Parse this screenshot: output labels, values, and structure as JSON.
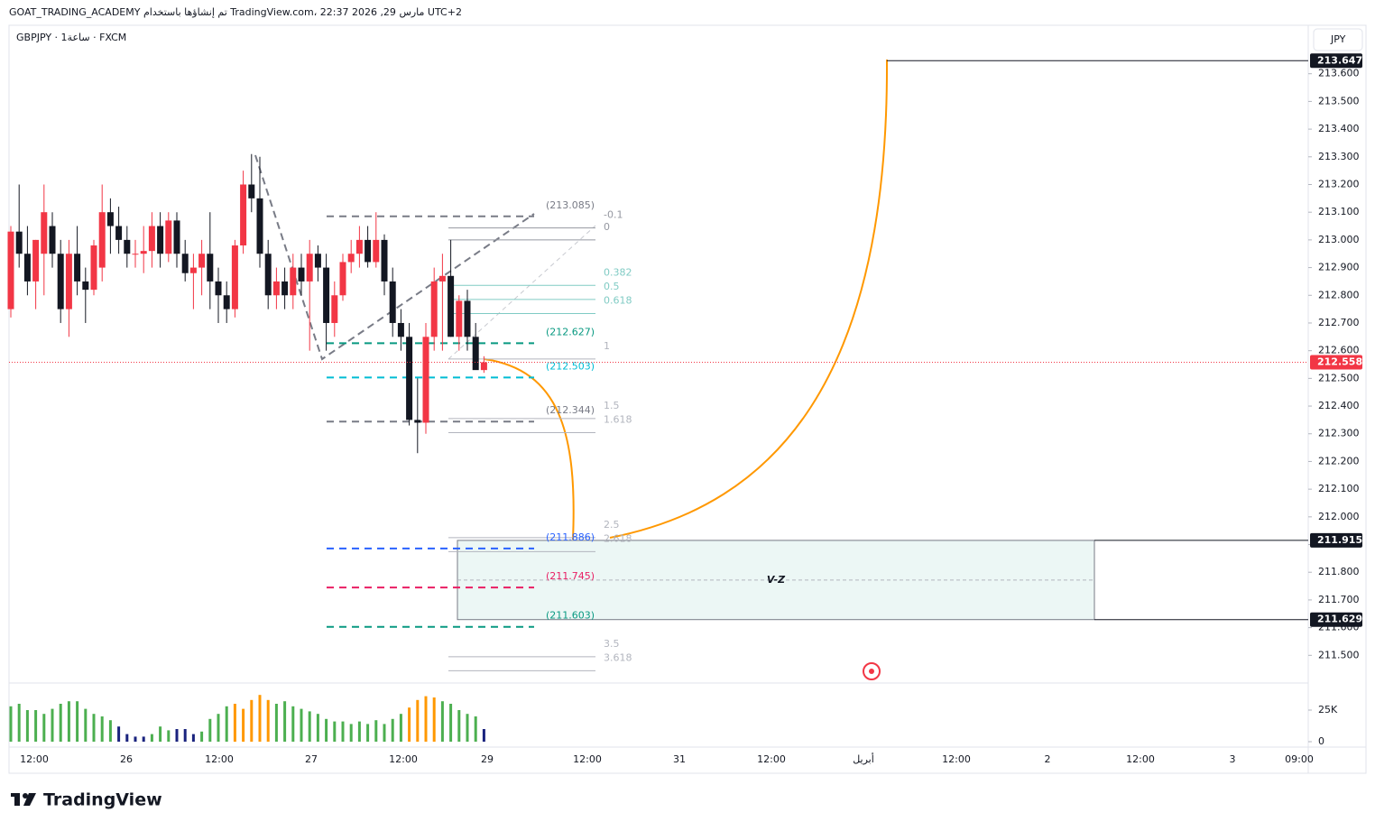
{
  "chart_data": {
    "type": "candlestick",
    "title": "GOAT_TRADING_ACADEMY تم إنشاؤها باستخدام TradingView.com، 22:37 2026 ,29 مارس UTC+2",
    "subtitle": "GBPJPY · 1ساعة · FXCM",
    "currency": "JPY",
    "brand": "TradingView",
    "up_color": "#f23645",
    "down_color": "#131722",
    "open": [
      212.75,
      213.03,
      212.95,
      212.85,
      212.95,
      213.05,
      212.95,
      212.75,
      212.95,
      212.85,
      212.82,
      212.9,
      213.1,
      213.05,
      213.0,
      212.95,
      212.95,
      212.96,
      213.05,
      212.95,
      213.07,
      212.95,
      212.88,
      212.9,
      212.95,
      212.85,
      212.8,
      212.75,
      212.98,
      213.2,
      213.15,
      212.95,
      212.8,
      212.85,
      212.8,
      212.9,
      212.85,
      212.95,
      212.9,
      212.7,
      212.8,
      212.92,
      212.95,
      213.0,
      212.92,
      213.0,
      212.85,
      212.7,
      212.65,
      212.35,
      212.34,
      212.65,
      212.85,
      212.87,
      212.65,
      212.78,
      212.65,
      212.53
    ],
    "high": [
      213.05,
      213.2,
      213.05,
      213.0,
      213.2,
      213.1,
      213.0,
      213.0,
      213.05,
      212.9,
      213.0,
      213.2,
      213.15,
      213.12,
      213.05,
      213.0,
      213.05,
      213.1,
      213.1,
      213.1,
      213.1,
      213.0,
      212.95,
      213.0,
      213.1,
      212.9,
      212.85,
      213.0,
      213.25,
      213.31,
      213.3,
      213.0,
      212.9,
      212.9,
      212.95,
      212.95,
      213.0,
      212.98,
      212.95,
      212.85,
      212.95,
      213.0,
      213.05,
      213.05,
      213.1,
      213.02,
      212.9,
      212.75,
      212.7,
      212.5,
      212.7,
      212.9,
      212.95,
      213.0,
      212.8,
      212.82,
      212.7,
      212.58
    ],
    "low": [
      212.72,
      212.9,
      212.8,
      212.75,
      212.8,
      212.9,
      212.7,
      212.65,
      212.8,
      212.7,
      212.8,
      212.85,
      212.95,
      212.95,
      212.9,
      212.9,
      212.88,
      212.9,
      212.9,
      212.92,
      212.9,
      212.85,
      212.75,
      212.8,
      212.75,
      212.7,
      212.7,
      212.72,
      212.95,
      213.1,
      212.9,
      212.75,
      212.75,
      212.75,
      212.75,
      212.8,
      212.6,
      212.85,
      212.6,
      212.65,
      212.78,
      212.88,
      212.9,
      212.9,
      212.9,
      212.8,
      212.65,
      212.6,
      212.33,
      212.23,
      212.3,
      212.6,
      212.6,
      212.65,
      212.6,
      212.6,
      212.55,
      212.52
    ],
    "close": [
      213.03,
      212.95,
      212.85,
      213.0,
      213.1,
      212.95,
      212.75,
      212.95,
      212.85,
      212.82,
      212.98,
      213.1,
      213.05,
      213.0,
      212.95,
      212.95,
      212.96,
      213.05,
      212.95,
      213.07,
      212.95,
      212.88,
      212.9,
      212.95,
      212.85,
      212.8,
      212.75,
      212.98,
      213.2,
      213.15,
      212.95,
      212.8,
      212.85,
      212.8,
      212.9,
      212.85,
      212.95,
      212.9,
      212.7,
      212.8,
      212.92,
      212.95,
      213.0,
      212.92,
      213.0,
      212.85,
      212.7,
      212.65,
      212.35,
      212.34,
      212.65,
      212.85,
      212.87,
      212.65,
      212.78,
      212.65,
      212.53,
      212.558
    ],
    "volume": [
      28,
      30,
      25,
      25,
      22,
      26,
      30,
      32,
      32,
      26,
      22,
      20,
      17,
      12,
      6,
      4,
      4,
      6,
      12,
      9,
      10,
      10,
      6,
      8,
      18,
      22,
      28,
      30,
      26,
      33,
      37,
      33,
      30,
      32,
      28,
      26,
      24,
      22,
      18,
      16,
      16,
      14,
      16,
      14,
      17,
      14,
      18,
      22,
      27,
      33,
      36,
      35,
      32,
      30,
      25,
      22,
      20,
      10
    ],
    "volume_colors": [
      "#4caf50",
      "#4caf50",
      "#4caf50",
      "#4caf50",
      "#4caf50",
      "#4caf50",
      "#4caf50",
      "#4caf50",
      "#4caf50",
      "#4caf50",
      "#4caf50",
      "#4caf50",
      "#4caf50",
      "#1a237e",
      "#1a237e",
      "#1a237e",
      "#1a237e",
      "#4caf50",
      "#4caf50",
      "#4caf50",
      "#1a237e",
      "#1a237e",
      "#1a237e",
      "#4caf50",
      "#4caf50",
      "#4caf50",
      "#4caf50",
      "#ff9800",
      "#ff9800",
      "#ff9800",
      "#ff9800",
      "#ff9800",
      "#4caf50",
      "#4caf50",
      "#4caf50",
      "#4caf50",
      "#4caf50",
      "#4caf50",
      "#4caf50",
      "#4caf50",
      "#4caf50",
      "#4caf50",
      "#4caf50",
      "#4caf50",
      "#4caf50",
      "#4caf50",
      "#4caf50",
      "#4caf50",
      "#ff9800",
      "#ff9800",
      "#ff9800",
      "#ff9800",
      "#4caf50",
      "#4caf50",
      "#4caf50",
      "#4caf50",
      "#4caf50",
      "#1a237e"
    ],
    "ylim": [
      211.4,
      213.775
    ],
    "yticks": [
      {
        "value": 213.6,
        "label": "213.600"
      },
      {
        "value": 213.5,
        "label": "213.500"
      },
      {
        "value": 213.4,
        "label": "213.400"
      },
      {
        "value": 213.3,
        "label": "213.300"
      },
      {
        "value": 213.2,
        "label": "213.200"
      },
      {
        "value": 213.1,
        "label": "213.100"
      },
      {
        "value": 213.0,
        "label": "213.000"
      },
      {
        "value": 212.9,
        "label": "212.900"
      },
      {
        "value": 212.8,
        "label": "212.800"
      },
      {
        "value": 212.7,
        "label": "212.700"
      },
      {
        "value": 212.6,
        "label": "212.600"
      },
      {
        "value": 212.5,
        "label": "212.500"
      },
      {
        "value": 212.4,
        "label": "212.400"
      },
      {
        "value": 212.3,
        "label": "212.300"
      },
      {
        "value": 212.2,
        "label": "212.200"
      },
      {
        "value": 212.1,
        "label": "212.100"
      },
      {
        "value": 212.0,
        "label": "212.000"
      },
      {
        "value": 211.9,
        "label": "211.900"
      },
      {
        "value": 211.8,
        "label": "211.800"
      },
      {
        "value": 211.7,
        "label": "211.700"
      },
      {
        "value": 211.6,
        "label": "211.600"
      },
      {
        "value": 211.5,
        "label": "211.500"
      }
    ],
    "volume_ticks": [
      {
        "value": 25,
        "label": "25K"
      },
      0
    ],
    "x_labels": [
      "12:00",
      "26",
      "12:00",
      "27",
      "12:00",
      "29",
      "12:00",
      "31",
      "12:00",
      "أبريل",
      "12:00",
      "2",
      "12:00",
      "3",
      "09:00"
    ],
    "fib": {
      "high": 213.0,
      "low": 212.57,
      "levels": [
        {
          "ratio": -0.1,
          "color": "#9598a1"
        },
        {
          "ratio": 0,
          "color": "#9598a1"
        },
        {
          "ratio": 0.382,
          "color": "#80cbc4"
        },
        {
          "ratio": 0.5,
          "color": "#80cbc4"
        },
        {
          "ratio": 0.618,
          "color": "#80cbc4"
        },
        {
          "ratio": 1,
          "color": "#b2b5be"
        },
        {
          "ratio": 1.5,
          "color": "#b2b5be"
        },
        {
          "ratio": 1.618,
          "color": "#b2b5be"
        },
        {
          "ratio": 2.5,
          "color": "#b2b5be"
        },
        {
          "ratio": 2.618,
          "color": "#b2b5be"
        },
        {
          "ratio": 3.5,
          "color": "#b2b5be"
        },
        {
          "ratio": 3.618,
          "color": "#b2b5be"
        }
      ]
    },
    "levels": [
      {
        "value": 213.085,
        "label": "(213.085)",
        "color": "#787b86"
      },
      {
        "value": 212.627,
        "label": "(212.627)",
        "color": "#089981"
      },
      {
        "value": 212.503,
        "label": "(212.503)",
        "color": "#00bcd4"
      },
      {
        "value": 212.344,
        "label": "(212.344)",
        "color": "#787b86"
      },
      {
        "value": 211.886,
        "label": "(211.886)",
        "color": "#2962ff"
      },
      {
        "value": 211.745,
        "label": "(211.745)",
        "color": "#e91e63"
      },
      {
        "value": 211.603,
        "label": "(211.603)",
        "color": "#089981"
      }
    ],
    "zone": {
      "label": "V-Z",
      "top": 211.915,
      "bottom": 211.629
    },
    "target": 213.647
  }
}
